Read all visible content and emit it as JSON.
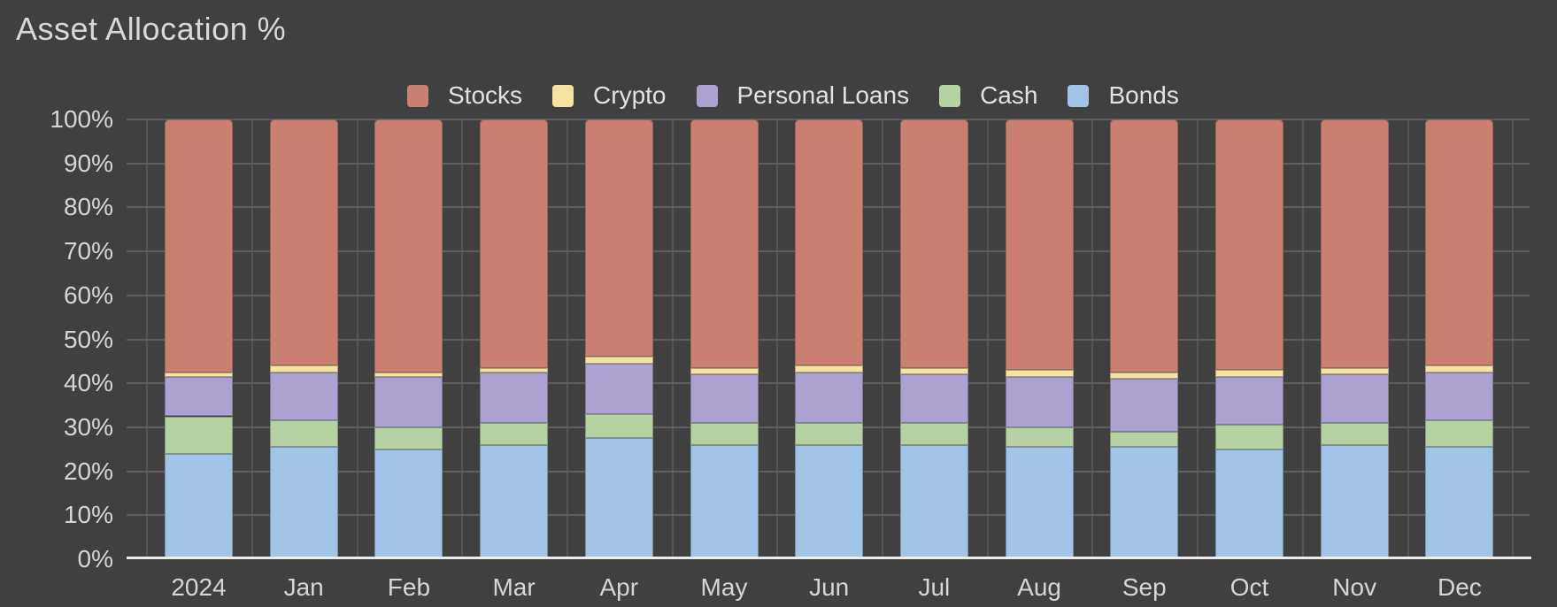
{
  "chart": {
    "title": "Asset Allocation %"
  },
  "colors": {
    "background": "#404040",
    "title_text": "#d8d8d8",
    "axis_text": "#d6d6d6",
    "legend_text": "#e2e2e2",
    "grid_horizontal": "#5d5d5d",
    "grid_vertical": "#545454",
    "axis_line": "#ececec",
    "stocks": "#cb7f70",
    "crypto": "#f6e3a2",
    "personal_loans": "#ada1d1",
    "cash": "#b6d2a2",
    "bonds": "#a2c4e6"
  },
  "chart_data": {
    "type": "bar",
    "stacked": true,
    "percent_stacked": true,
    "title": "Asset Allocation %",
    "xlabel": "",
    "ylabel": "",
    "ylim": [
      0,
      100
    ],
    "y_ticks": [
      "0%",
      "10%",
      "20%",
      "30%",
      "40%",
      "50%",
      "60%",
      "70%",
      "80%",
      "90%",
      "100%"
    ],
    "grid": true,
    "legend_position": "top",
    "legend_order": [
      "Stocks",
      "Crypto",
      "Personal Loans",
      "Cash",
      "Bonds"
    ],
    "stack_order_bottom_to_top": [
      "Bonds",
      "Cash",
      "Personal Loans",
      "Crypto",
      "Stocks"
    ],
    "categories": [
      "2024",
      "Jan",
      "Feb",
      "Mar",
      "Apr",
      "May",
      "Jun",
      "Jul",
      "Aug",
      "Sep",
      "Oct",
      "Nov",
      "Dec"
    ],
    "series": [
      {
        "name": "Stocks",
        "color": "#cb7f70",
        "values": [
          57.5,
          56,
          57.5,
          56.5,
          54,
          56.5,
          56,
          56.5,
          57,
          57.5,
          57,
          56.5,
          56
        ]
      },
      {
        "name": "Crypto",
        "color": "#f6e3a2",
        "values": [
          1,
          1.5,
          1,
          1,
          1.5,
          1.5,
          1.5,
          1.5,
          1.5,
          1.5,
          1.5,
          1.5,
          1.5
        ]
      },
      {
        "name": "Personal Loans",
        "color": "#ada1d1",
        "values": [
          9,
          11,
          11.5,
          11.5,
          11.5,
          11,
          11.5,
          11,
          11.5,
          12,
          11,
          11,
          11
        ]
      },
      {
        "name": "Cash",
        "color": "#b6d2a2",
        "values": [
          8.5,
          6,
          5,
          5,
          5.5,
          5,
          5,
          5,
          4.5,
          3.5,
          5.5,
          5,
          6
        ]
      },
      {
        "name": "Bonds",
        "color": "#a2c4e6",
        "values": [
          24,
          25.5,
          25,
          26,
          27.5,
          26,
          26,
          26,
          25.5,
          25.5,
          25,
          26,
          25.5
        ]
      }
    ]
  }
}
